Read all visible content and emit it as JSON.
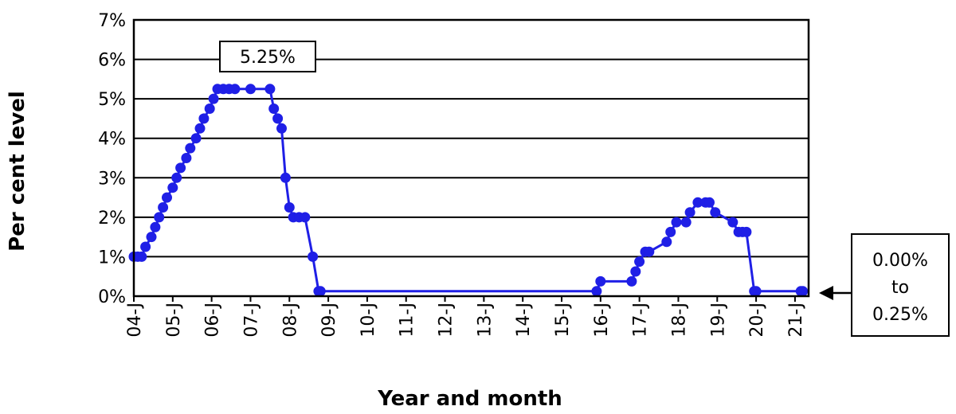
{
  "chart_data": {
    "type": "line",
    "title": "",
    "xlabel": "Year and month",
    "ylabel": "Per cent level",
    "ylim": [
      0,
      7
    ],
    "yticks": [
      "0%",
      "1%",
      "2%",
      "3%",
      "4%",
      "5%",
      "6%",
      "7%"
    ],
    "xticks": [
      "04-J",
      "05-J",
      "06-J",
      "07-J",
      "08-J",
      "09-J",
      "10-J",
      "11-J",
      "12-J",
      "13-J",
      "14-J",
      "15-J",
      "16-J",
      "17-J",
      "18-J",
      "19-J",
      "20-J",
      "21-J"
    ],
    "grid": true,
    "series_color": "#1f1fe6",
    "series": [
      {
        "x": [
          2004.0,
          2004.1,
          2004.2,
          2004.3,
          2004.45,
          2004.55,
          2004.65,
          2004.75,
          2004.85,
          2005.0,
          2005.1,
          2005.2,
          2005.35,
          2005.45,
          2005.6,
          2005.7,
          2005.8,
          2005.95,
          2006.05,
          2006.15,
          2006.3,
          2006.45,
          2006.6,
          2007.0,
          2007.5,
          2007.6,
          2007.7,
          2007.8,
          2007.9,
          2008.0,
          2008.1,
          2008.25,
          2008.4,
          2008.6,
          2008.75,
          2008.8,
          2015.9,
          2016.0,
          2016.8,
          2016.9,
          2017.0,
          2017.15,
          2017.25,
          2017.7,
          2017.8,
          2017.95,
          2018.2,
          2018.3,
          2018.5,
          2018.7,
          2018.8,
          2018.95,
          2019.4,
          2019.55,
          2019.65,
          2019.75,
          2019.95,
          2020.0,
          2021.15,
          2021.2
        ],
        "values": [
          1.0,
          1.0,
          1.0,
          1.25,
          1.5,
          1.75,
          2.0,
          2.25,
          2.5,
          2.75,
          3.0,
          3.25,
          3.5,
          3.75,
          4.0,
          4.25,
          4.5,
          4.75,
          5.0,
          5.25,
          5.25,
          5.25,
          5.25,
          5.25,
          5.25,
          4.75,
          4.5,
          4.25,
          3.0,
          2.25,
          2.0,
          2.0,
          2.0,
          1.0,
          0.125,
          0.125,
          0.125,
          0.375,
          0.375,
          0.625,
          0.875,
          1.125,
          1.125,
          1.375,
          1.625,
          1.875,
          1.875,
          2.125,
          2.375,
          2.375,
          2.375,
          2.125,
          1.875,
          1.625,
          1.625,
          1.625,
          0.125,
          0.125,
          0.125,
          0.125
        ]
      }
    ],
    "annotations": {
      "peak": "5.25%",
      "range_line1": "0.00%",
      "range_line2": "to",
      "range_line3": "0.25%"
    }
  }
}
